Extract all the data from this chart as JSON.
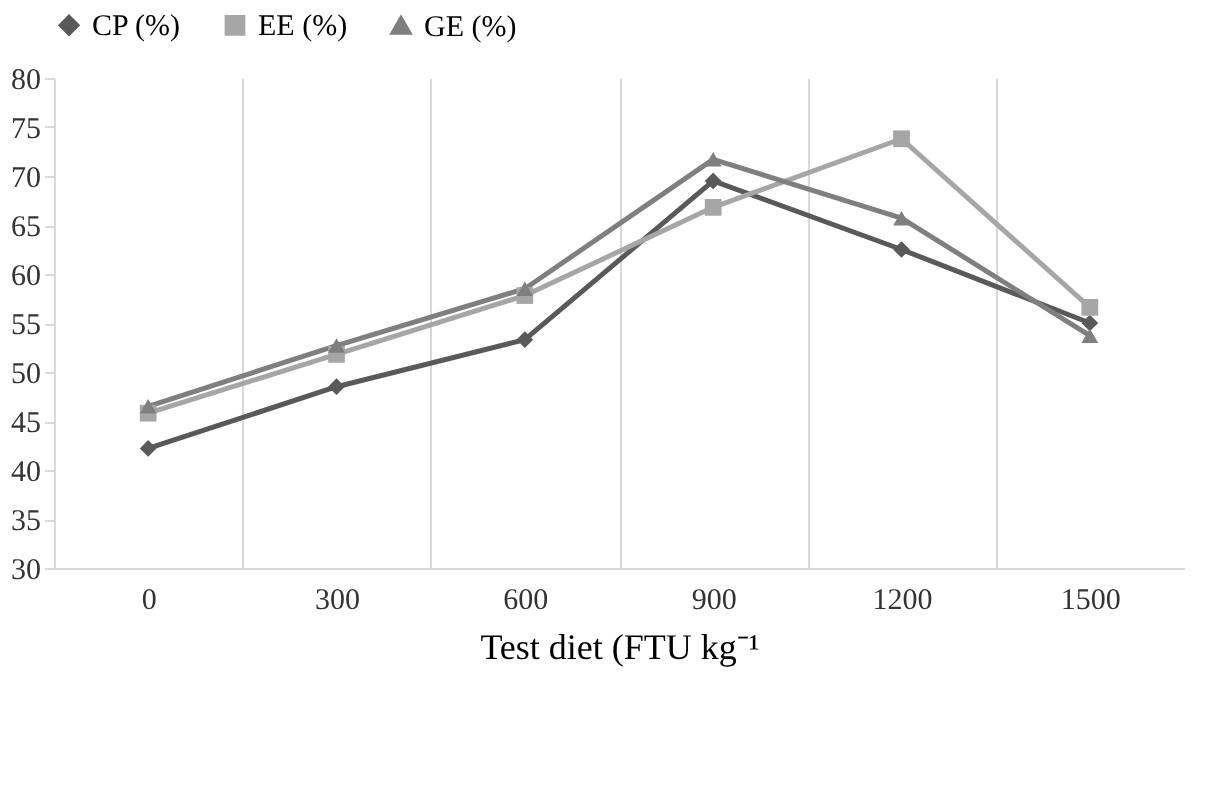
{
  "chart_data": {
    "type": "line",
    "xlabel": "Test diet (FTU kg⁻¹",
    "categories": [
      "0",
      "300",
      "600",
      "900",
      "1200",
      "1500"
    ],
    "series": [
      {
        "name": "CP (%)",
        "color": "#595959",
        "marker": "diamond",
        "values": [
          42.2,
          48.5,
          53.3,
          69.5,
          62.5,
          55.0
        ]
      },
      {
        "name": "EE (%)",
        "color": "#a6a6a6",
        "marker": "square",
        "values": [
          45.8,
          51.8,
          57.8,
          66.8,
          73.8,
          56.6
        ]
      },
      {
        "name": "GE (%)",
        "color": "#7f7f7f",
        "marker": "triangle",
        "values": [
          46.5,
          52.7,
          58.5,
          71.7,
          65.7,
          53.7
        ]
      }
    ],
    "ylim": [
      30,
      80
    ],
    "yticks": [
      30,
      35,
      40,
      45,
      50,
      55,
      60,
      65,
      70,
      75,
      80
    ],
    "grid": "x",
    "legend": "top"
  }
}
